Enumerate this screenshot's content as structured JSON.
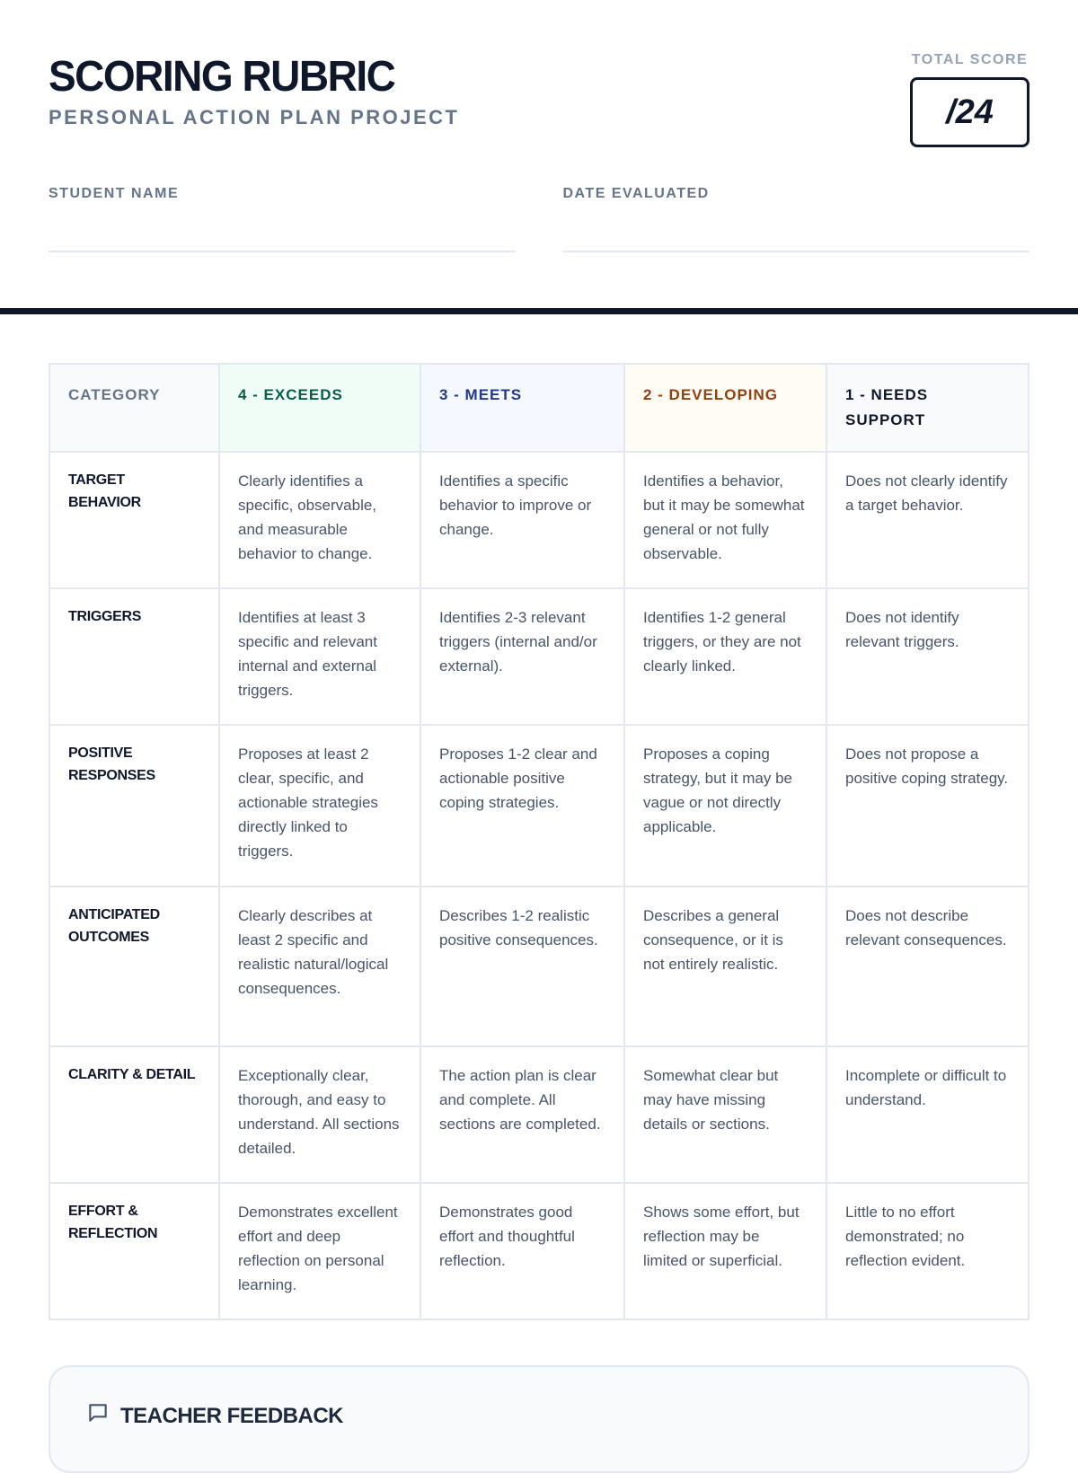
{
  "header": {
    "title": "SCORING RUBRIC",
    "subtitle": "PERSONAL ACTION PLAN PROJECT",
    "total_score_label": "TOTAL SCORE",
    "total_score_value": "/24"
  },
  "fields": {
    "student_name_label": "STUDENT NAME",
    "student_name_value": "",
    "date_label": "DATE EVALUATED",
    "date_value": ""
  },
  "table": {
    "headers": [
      "CATEGORY",
      "4 - EXCEEDS",
      "3 - MEETS",
      "2 - DEVELOPING",
      "1 - NEEDS SUPPORT"
    ],
    "header_colors": [
      "#64748b",
      "#065f46",
      "#1e3a8a",
      "#92400e",
      "#0f172a"
    ],
    "rows": [
      [
        "TARGET BEHAVIOR",
        "Clearly identifies a specific, observable, and measurable behavior to change.",
        "Identifies a specific behavior to improve or change.",
        "Identifies a behavior, but it may be somewhat general or not fully observable.",
        "Does not clearly identify a target behavior."
      ],
      [
        "TRIGGERS",
        "Identifies at least 3 specific and relevant internal and external triggers.",
        "Identifies 2-3 relevant triggers (internal and/or external).",
        "Identifies 1-2 general triggers, or they are not clearly linked.",
        "Does not identify relevant triggers."
      ],
      [
        "POSITIVE RESPONSES",
        "Proposes at least 2 clear, specific, and actionable strategies directly linked to triggers.",
        "Proposes 1-2 clear and actionable positive coping strategies.",
        "Proposes a coping strategy, but it may be vague or not directly applicable.",
        "Does not propose a positive coping strategy."
      ],
      [
        "ANTICIPATED OUTCOMES",
        "Clearly describes at least 2 specific and realistic natural/logical consequences.",
        "Describes 1-2 realistic positive consequences.",
        "Describes a general consequence, or it is not entirely realistic.",
        "Does not describe relevant consequences."
      ],
      [
        "CLARITY & DETAIL",
        "Exceptionally clear, thorough, and easy to understand. All sections detailed.",
        "The action plan is clear and complete. All sections are completed.",
        "Somewhat clear but may have missing details or sections.",
        "Incomplete or difficult to understand."
      ],
      [
        "EFFORT & REFLECTION",
        "Demonstrates excellent effort and deep reflection on personal learning.",
        "Demonstrates good effort and thoughtful reflection.",
        "Shows some effort, but reflection may be limited or superficial.",
        "Little to no effort demonstrated; no reflection evident."
      ]
    ]
  },
  "feedback": {
    "icon": "message-square-icon",
    "title": "TEACHER FEEDBACK"
  }
}
